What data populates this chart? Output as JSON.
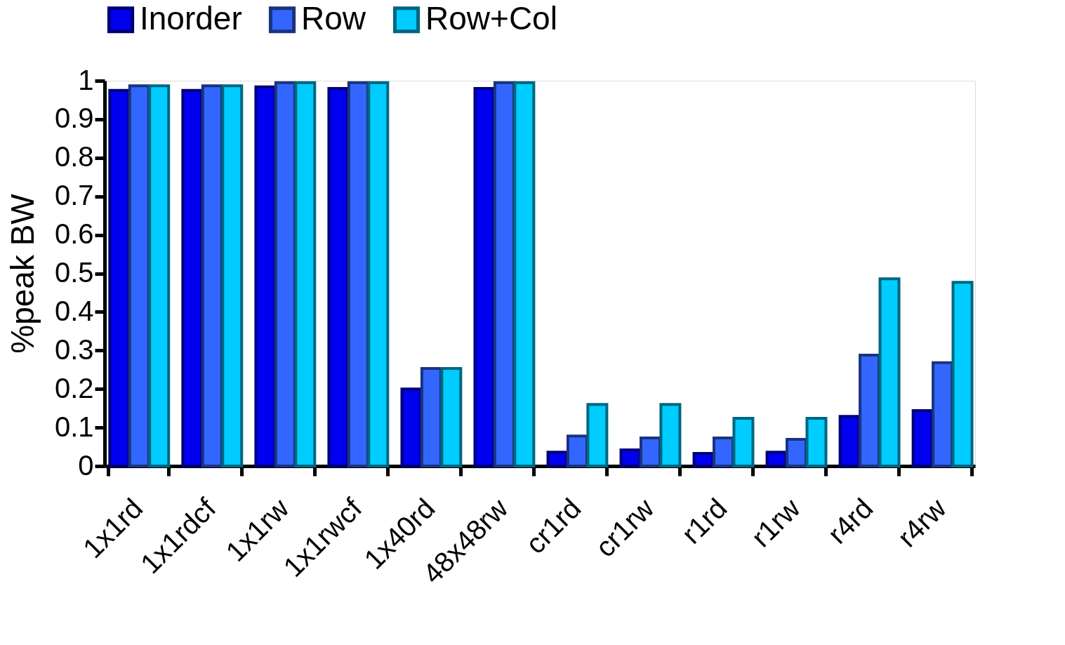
{
  "chart_data": {
    "type": "bar",
    "ylabel": "%peak BW",
    "categories": [
      "1x1rd",
      "1x1rdcf",
      "1x1rw",
      "1x1rwcf",
      "1x40rd",
      "48x48rw",
      "cr1rd",
      "cr1rw",
      "r1rd",
      "r1rw",
      "r4rd",
      "r4rw"
    ],
    "series": [
      {
        "name": "Inorder",
        "color": "#0000ee",
        "values": [
          0.975,
          0.975,
          0.984,
          0.98,
          0.2,
          0.98,
          0.036,
          0.042,
          0.033,
          0.036,
          0.129,
          0.144
        ]
      },
      {
        "name": "Row",
        "color": "#3366ff",
        "values": [
          0.987,
          0.987,
          0.995,
          0.995,
          0.253,
          0.995,
          0.078,
          0.073,
          0.073,
          0.069,
          0.288,
          0.268
        ]
      },
      {
        "name": "Row+Col",
        "color": "#00ccff",
        "values": [
          0.987,
          0.987,
          0.995,
          0.995,
          0.253,
          0.995,
          0.16,
          0.16,
          0.124,
          0.124,
          0.486,
          0.477
        ]
      }
    ],
    "ylim": [
      0,
      1
    ],
    "yticks": [
      0,
      0.1,
      0.2,
      0.3,
      0.4,
      0.5,
      0.6,
      0.7,
      0.8,
      0.9,
      1
    ],
    "grid": false,
    "legend": "top"
  }
}
